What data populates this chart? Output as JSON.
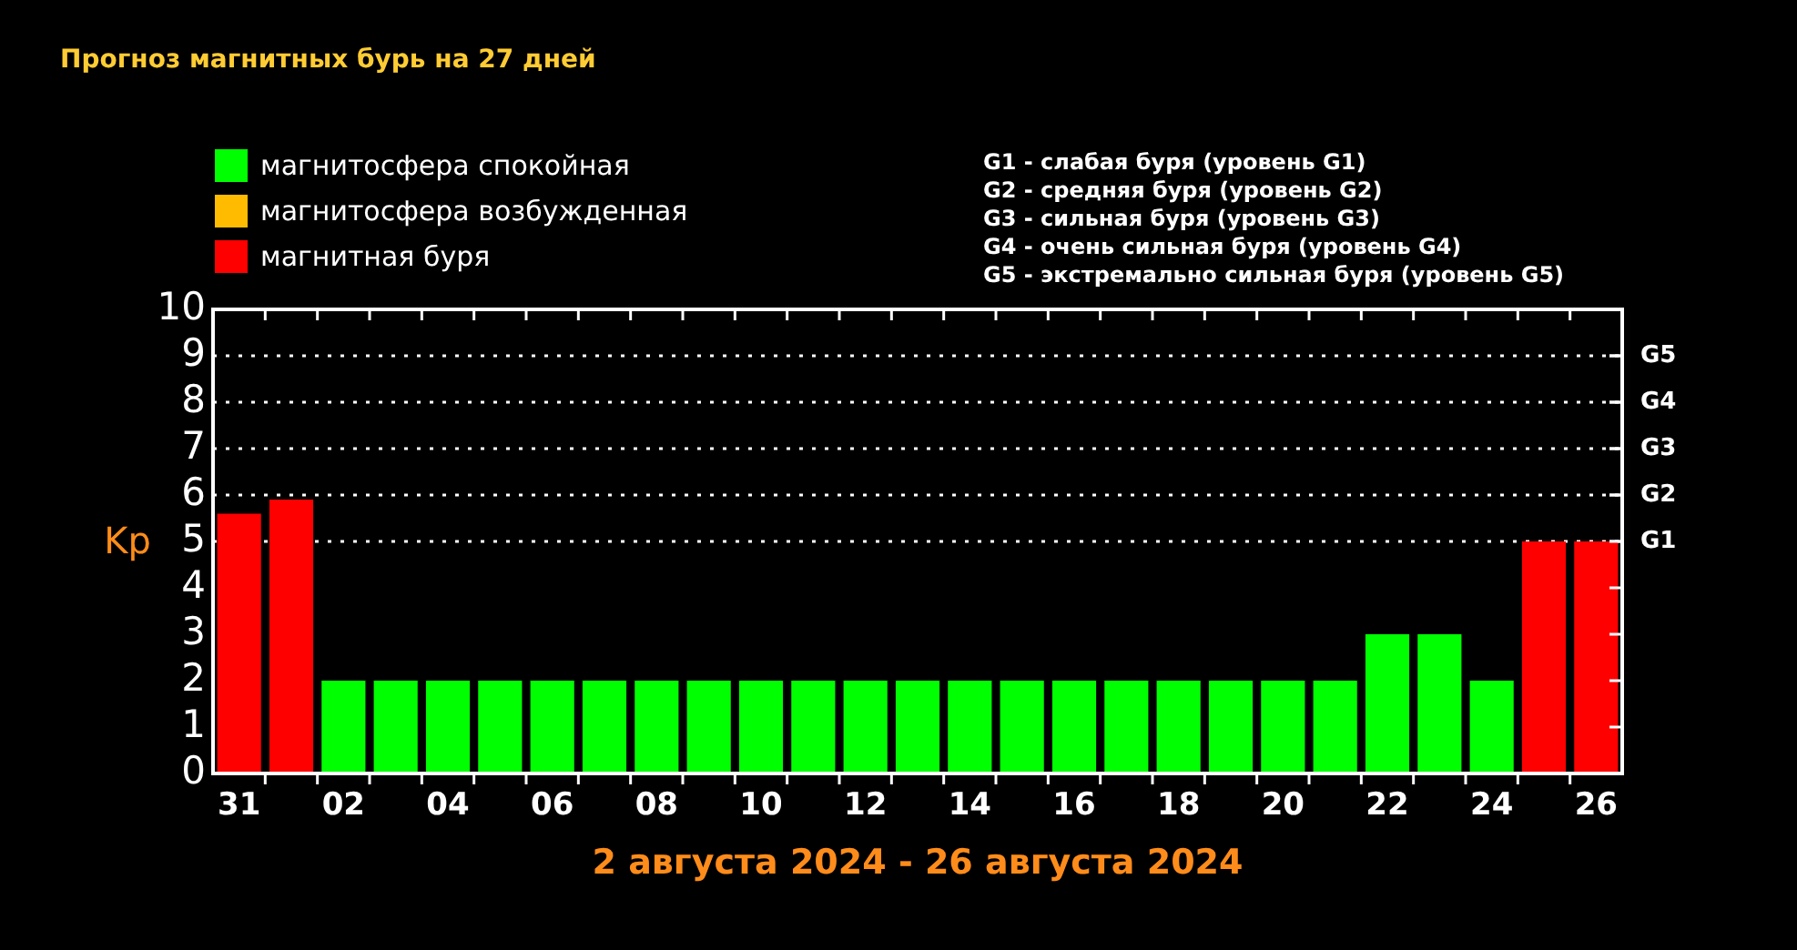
{
  "chart_data": {
    "type": "bar",
    "title": "Прогноз магнитных бурь на 27 дней",
    "xlabel": "2 августа 2024 - 26 августа 2024",
    "ylabel": "Kp",
    "categories": [
      "31",
      null,
      "02",
      null,
      "04",
      null,
      "06",
      null,
      "08",
      null,
      "10",
      null,
      "12",
      null,
      "14",
      null,
      "16",
      null,
      "18",
      null,
      "20",
      null,
      "22",
      null,
      "24",
      null,
      "26"
    ],
    "stacked": true,
    "series": [
      {
        "name": "магнитосфера спокойная",
        "color": "#00ff00",
        "values": [
          null,
          null,
          2,
          2,
          2,
          2,
          2,
          2,
          2,
          2,
          2,
          2,
          2,
          2,
          2,
          2,
          2,
          2,
          2,
          2,
          2,
          2,
          3,
          3,
          2,
          null,
          null
        ]
      },
      {
        "name": "магнитосфера возбужденная",
        "color": "#ffbb00",
        "values": [
          null,
          null,
          null,
          null,
          null,
          null,
          null,
          null,
          null,
          null,
          null,
          null,
          null,
          null,
          null,
          null,
          null,
          null,
          null,
          null,
          null,
          null,
          null,
          null,
          null,
          null,
          null
        ]
      },
      {
        "name": "магнитная буря",
        "color": "#ff0000",
        "values": [
          5.6,
          5.9,
          null,
          null,
          null,
          null,
          null,
          null,
          null,
          null,
          null,
          null,
          null,
          null,
          null,
          null,
          null,
          null,
          null,
          null,
          null,
          null,
          null,
          null,
          null,
          5,
          5
        ]
      }
    ],
    "ylim": [
      0,
      10
    ],
    "yticks": [
      0,
      1,
      2,
      3,
      4,
      5,
      6,
      7,
      8,
      9,
      10
    ],
    "ref_lines": [
      {
        "axis": "y",
        "value": 5,
        "label": "G1",
        "color": "#ffffff",
        "line_style": "dotted"
      },
      {
        "axis": "y",
        "value": 6,
        "label": "G2",
        "color": "#ffffff",
        "line_style": "dotted"
      },
      {
        "axis": "y",
        "value": 7,
        "label": "G3",
        "color": "#ffffff",
        "line_style": "dotted"
      },
      {
        "axis": "y",
        "value": 8,
        "label": "G4",
        "color": "#ffffff",
        "line_style": "dotted"
      },
      {
        "axis": "y",
        "value": 9,
        "label": "G5",
        "color": "#ffffff",
        "line_style": "dotted"
      }
    ],
    "annotations": [
      "G1 - слабая буря (уровень G1)",
      "G2 - средняя буря (уровень G2)",
      "G3 - сильная буря (уровень G3)",
      "G4 - очень сильная буря (уровень G4)",
      "G5 - экстремально сильная буря (уровень G5)"
    ],
    "grid": false,
    "legend": "top left"
  }
}
